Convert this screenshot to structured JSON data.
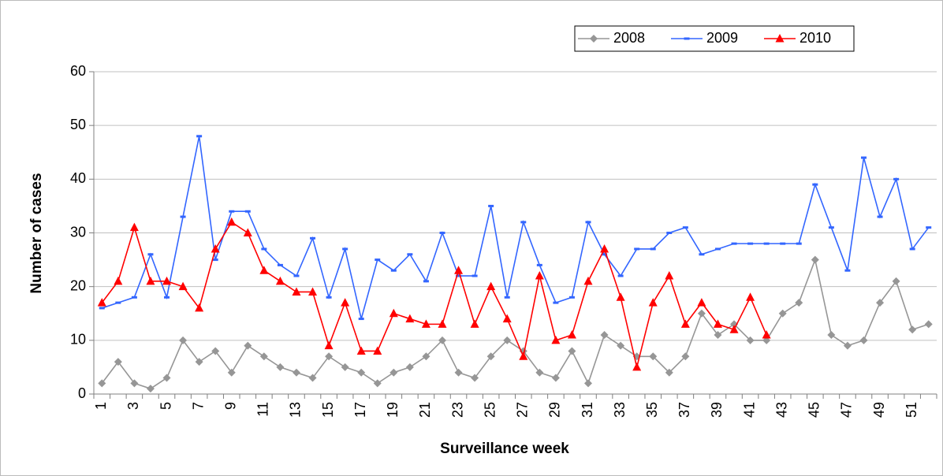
{
  "chart_data": {
    "type": "line",
    "x_label": "Surveillance week",
    "y_label": "Number of cases",
    "categories": [
      "1",
      null,
      "3",
      null,
      "5",
      null,
      "7",
      null,
      "9",
      null,
      "11",
      null,
      "13",
      null,
      "15",
      null,
      "17",
      null,
      "19",
      null,
      "21",
      null,
      "23",
      null,
      "25",
      null,
      "27",
      null,
      "29",
      null,
      "31",
      null,
      "33",
      null,
      "35",
      null,
      "37",
      null,
      "39",
      null,
      "41",
      null,
      "43",
      null,
      "45",
      null,
      "47",
      null,
      "49",
      null,
      "51",
      null
    ],
    "series": [
      {
        "name": "2008",
        "color": "#969696",
        "marker": "diamond",
        "values": [
          2,
          6,
          2,
          1,
          3,
          10,
          6,
          8,
          4,
          9,
          7,
          5,
          4,
          3,
          7,
          5,
          4,
          2,
          4,
          5,
          7,
          10,
          4,
          3,
          7,
          10,
          8,
          4,
          3,
          8,
          2,
          11,
          9,
          7,
          7,
          4,
          7,
          15,
          11,
          13,
          10,
          10,
          15,
          17,
          25,
          11,
          9,
          10,
          17,
          21,
          12,
          13
        ]
      },
      {
        "name": "2009",
        "color": "#3366ff",
        "marker": "dash",
        "values": [
          16,
          17,
          18,
          26,
          18,
          33,
          48,
          25,
          34,
          34,
          27,
          24,
          22,
          29,
          18,
          27,
          14,
          25,
          23,
          26,
          21,
          30,
          22,
          22,
          35,
          18,
          32,
          24,
          17,
          18,
          32,
          26,
          22,
          27,
          27,
          30,
          31,
          26,
          27,
          28,
          28,
          28,
          28,
          28,
          39,
          31,
          23,
          44,
          33,
          40,
          27,
          31
        ]
      },
      {
        "name": "2010",
        "color": "#ff0000",
        "marker": "triangle",
        "values": [
          17,
          21,
          31,
          21,
          21,
          20,
          16,
          27,
          32,
          30,
          23,
          21,
          19,
          19,
          9,
          17,
          8,
          8,
          15,
          14,
          13,
          13,
          23,
          13,
          20,
          14,
          7,
          22,
          10,
          11,
          21,
          27,
          18,
          5,
          17,
          22,
          13,
          17,
          13,
          12,
          18,
          11,
          null,
          null,
          null,
          null,
          null,
          null,
          null,
          null,
          null,
          null
        ]
      }
    ],
    "ylim": [
      0,
      60
    ],
    "yticks": [
      0,
      10,
      20,
      30,
      40,
      50,
      60
    ],
    "grid": true,
    "legend": "top-right"
  }
}
